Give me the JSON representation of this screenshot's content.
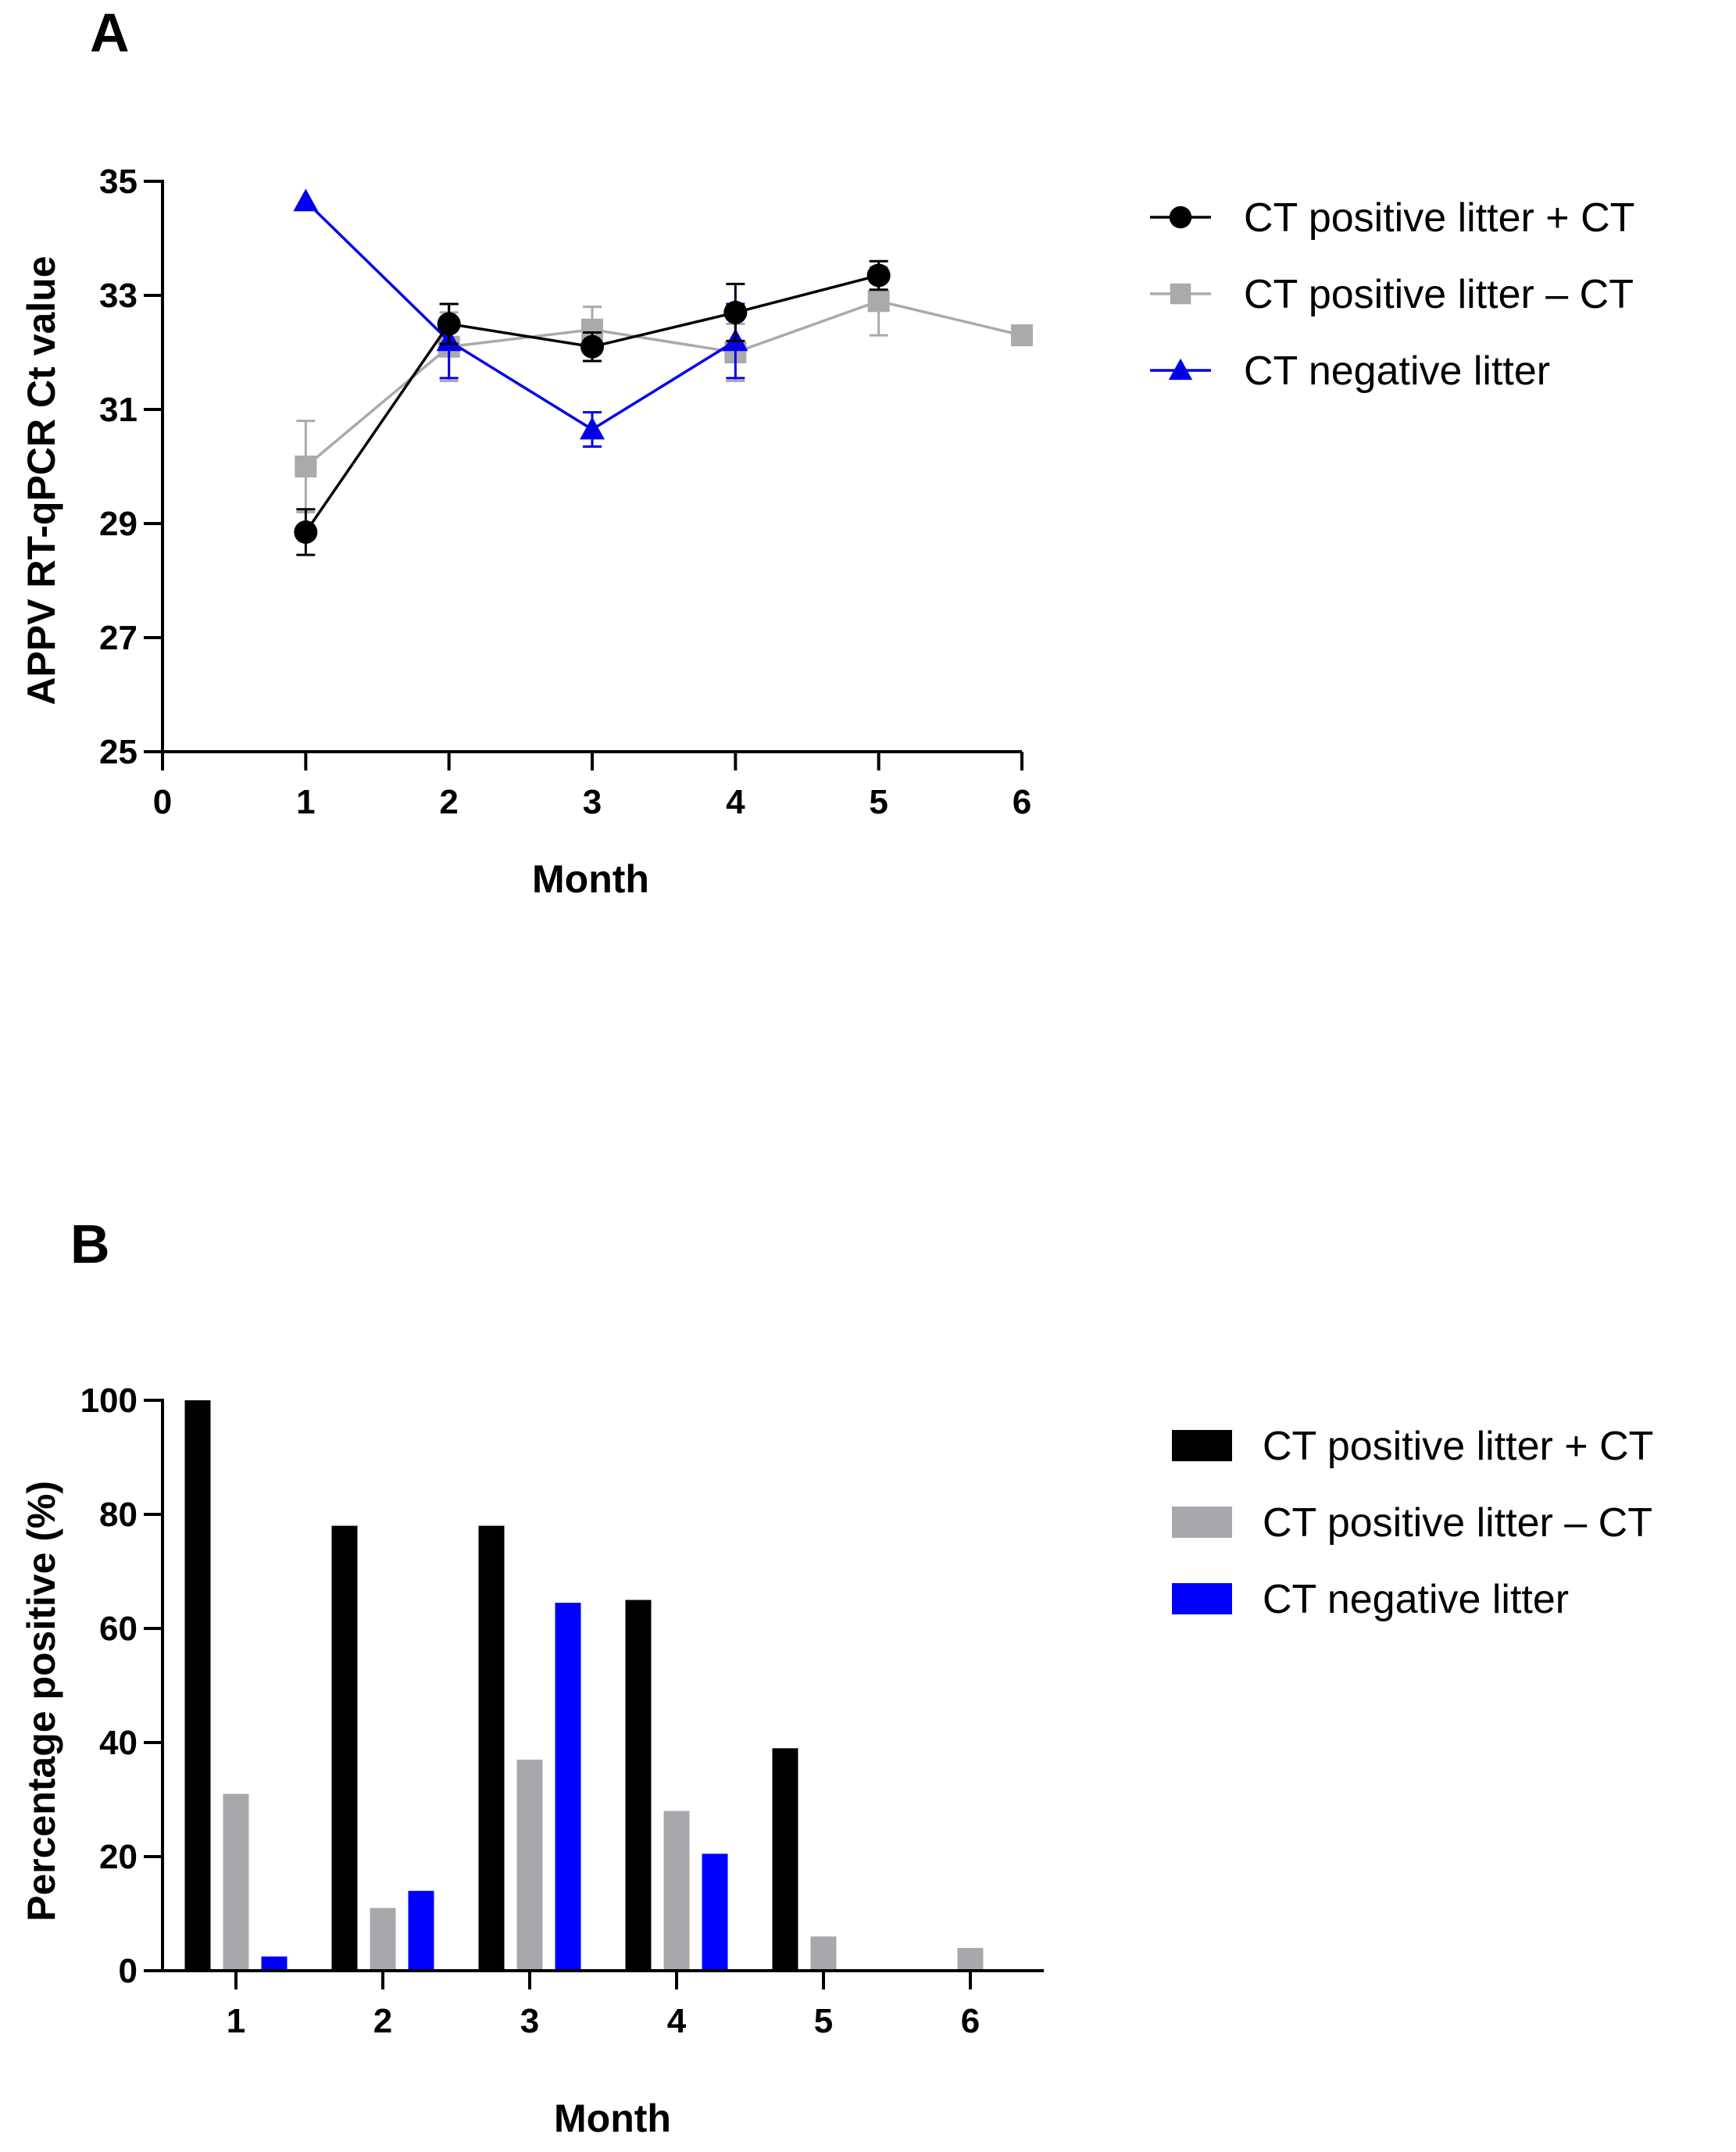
{
  "figure": {
    "panel_a_label": "A",
    "panel_b_label": "B"
  },
  "chart_data": [
    {
      "type": "line",
      "panel": "A",
      "title": "",
      "xlabel": "Month",
      "ylabel": "APPV RT-qPCR Ct value",
      "xlim": [
        0,
        6
      ],
      "ylim": [
        25,
        35
      ],
      "xticks": [
        0,
        1,
        2,
        3,
        4,
        5,
        6
      ],
      "yticks": [
        25,
        27,
        29,
        31,
        33,
        35
      ],
      "grid": false,
      "legend_position": "right",
      "series": [
        {
          "name": "CT positive litter + CT",
          "color": "#000000",
          "marker": "circle",
          "x": [
            1,
            2,
            3,
            4,
            5
          ],
          "y": [
            28.85,
            32.5,
            32.1,
            32.7,
            33.35
          ],
          "err": [
            0.4,
            0.35,
            0.25,
            0.5,
            0.25
          ]
        },
        {
          "name": "CT positive litter – CT",
          "color": "#aaaaaa",
          "marker": "square",
          "x": [
            1,
            2,
            3,
            4,
            5,
            6
          ],
          "y": [
            30.0,
            32.1,
            32.4,
            32.0,
            32.9,
            32.3
          ],
          "err": [
            0.8,
            0.6,
            0.4,
            0.5,
            0.6,
            0.0
          ]
        },
        {
          "name": "CT negative litter",
          "color": "#0000ee",
          "marker": "triangle",
          "x": [
            1,
            2,
            3,
            4
          ],
          "y": [
            34.65,
            32.2,
            30.65,
            32.2
          ],
          "err": [
            0.0,
            0.65,
            0.3,
            0.65
          ]
        }
      ]
    },
    {
      "type": "bar",
      "panel": "B",
      "title": "",
      "xlabel": "Month",
      "ylabel": "Percentage positive (%)",
      "categories": [
        "1",
        "2",
        "3",
        "4",
        "5",
        "6"
      ],
      "ylim": [
        0,
        100
      ],
      "yticks": [
        0,
        20,
        40,
        60,
        80,
        100
      ],
      "grid": false,
      "legend_position": "right",
      "series": [
        {
          "name": "CT positive litter + CT",
          "color": "#000000",
          "values": [
            100,
            78,
            78,
            65,
            39,
            0
          ]
        },
        {
          "name": "CT positive litter – CT",
          "color": "#a8a8ac",
          "values": [
            31,
            11,
            37,
            28,
            6,
            4
          ]
        },
        {
          "name": "CT negative litter",
          "color": "#0000ff",
          "values": [
            2.5,
            14,
            64.5,
            20.5,
            0,
            0
          ]
        }
      ]
    }
  ]
}
